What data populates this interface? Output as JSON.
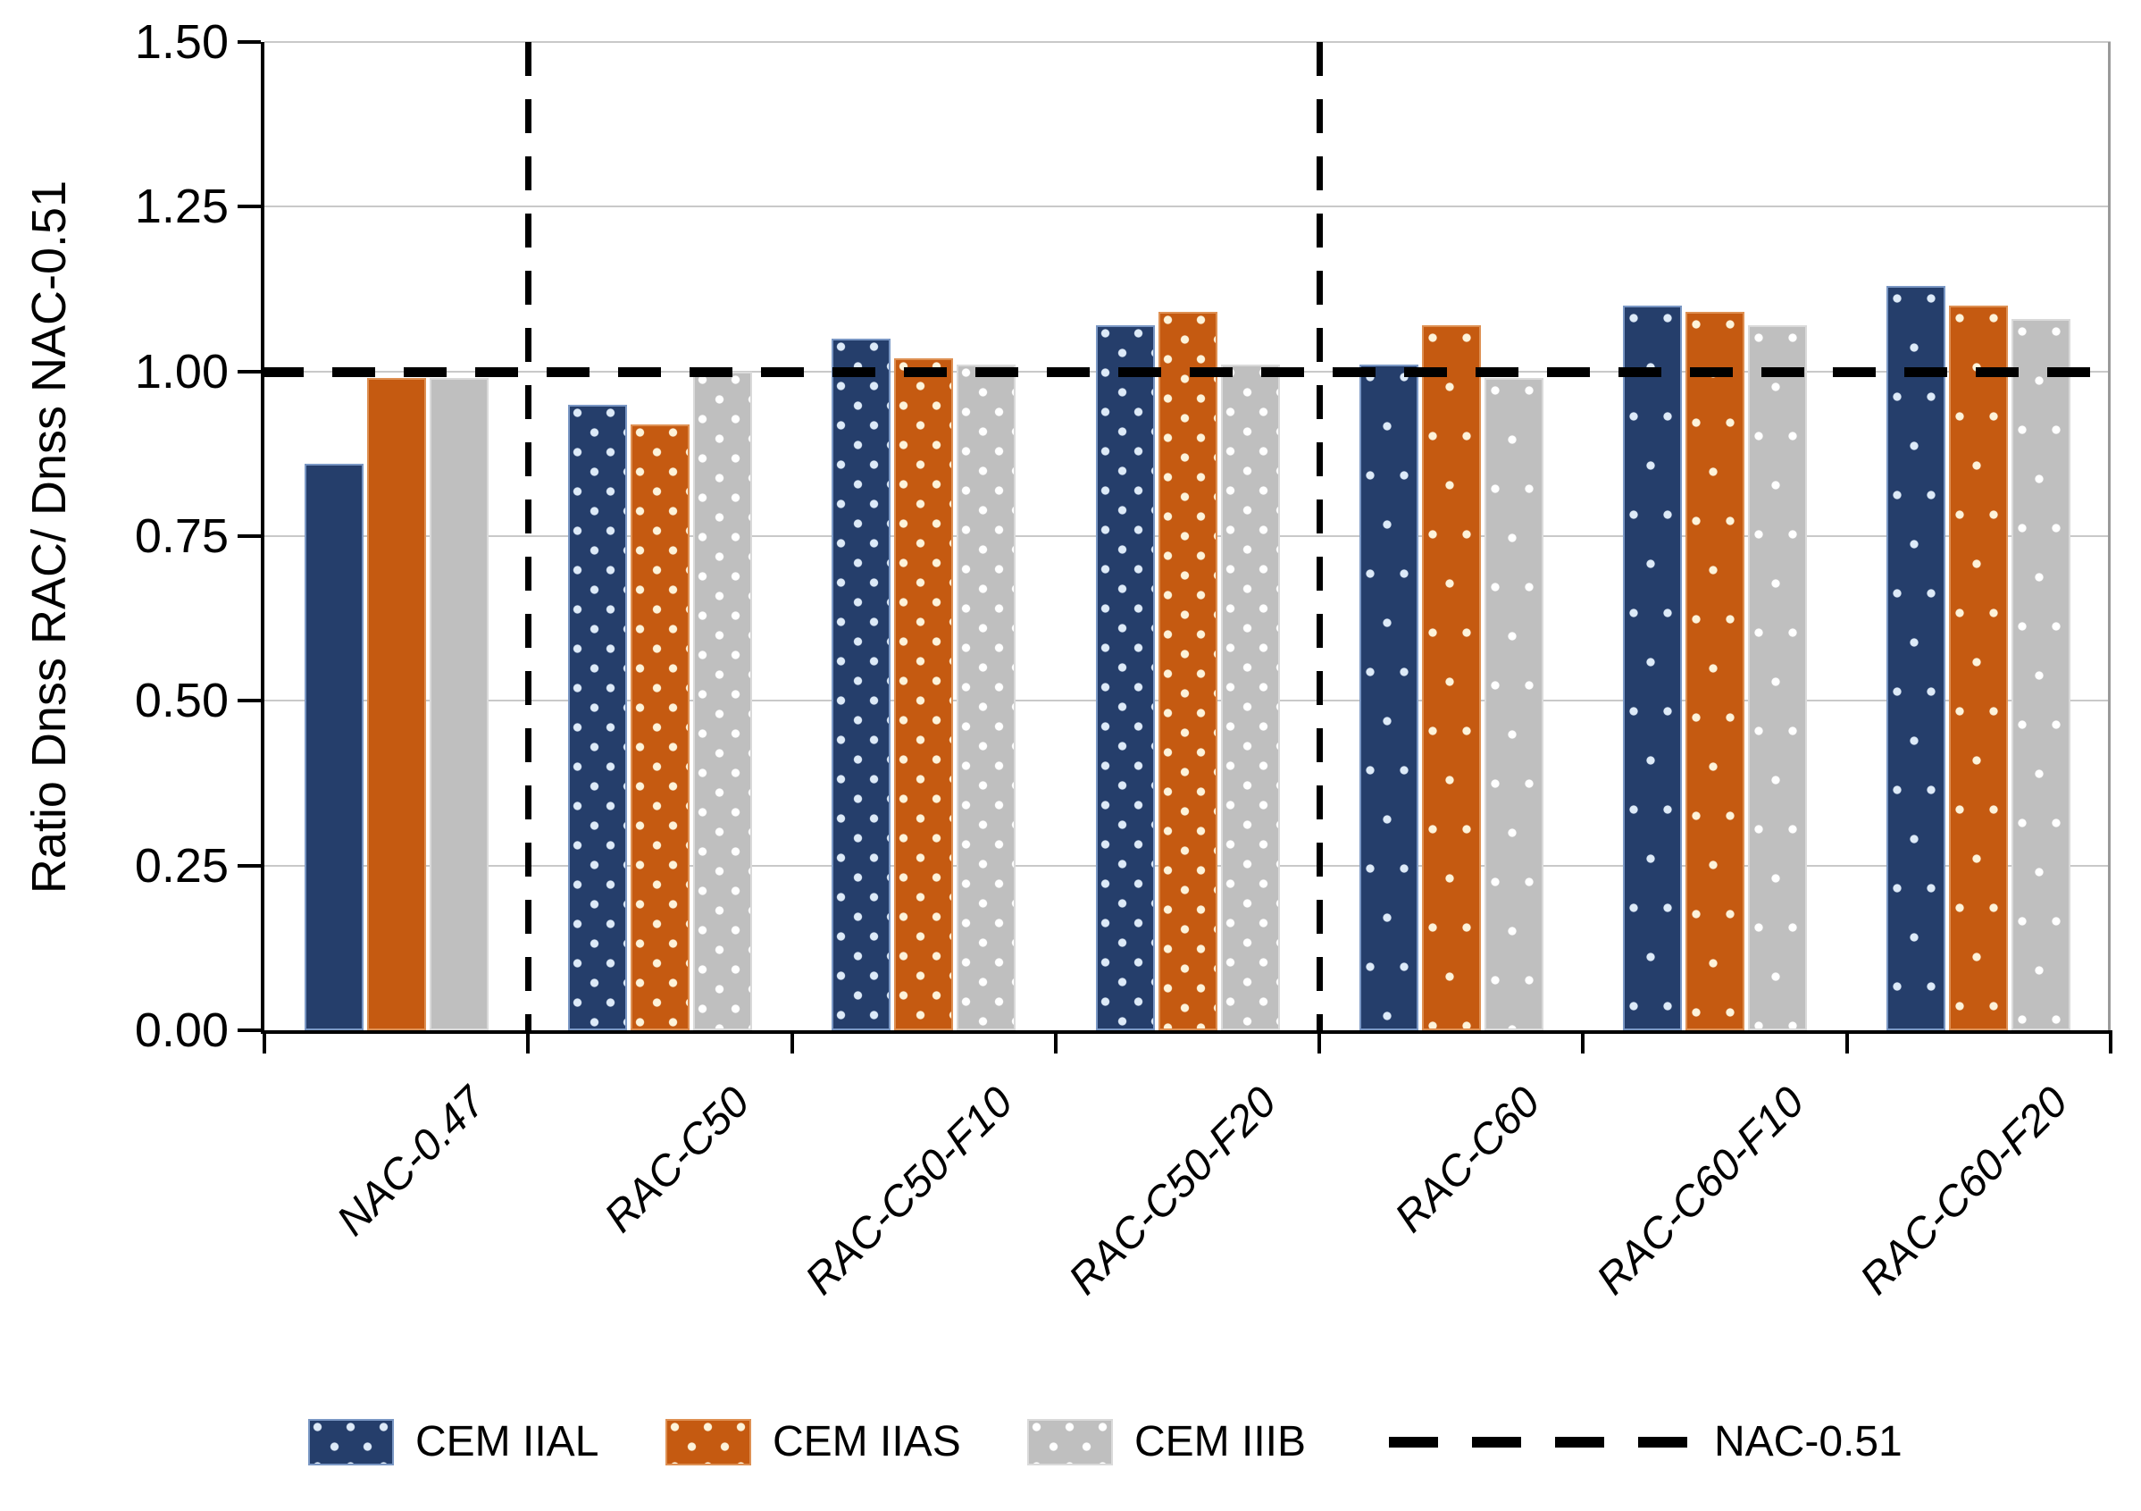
{
  "y_axis": {
    "title": "Ratio Dnss RAC/ Dnss NAC-0.51",
    "tick_labels": [
      "0.00",
      "0.25",
      "0.50",
      "0.75",
      "1.00",
      "1.25",
      "1.50"
    ]
  },
  "x_axis": {
    "labels": [
      "NAC-0.47",
      "RAC-C50",
      "RAC-C50-F10",
      "RAC-C50-F20",
      "RAC-C60",
      "RAC-C60-F10",
      "RAC-C60-F20"
    ]
  },
  "legend": [
    {
      "label": "CEM IIAL",
      "swatch": "dotted-blue"
    },
    {
      "label": "CEM IIAS",
      "swatch": "dotted-orange"
    },
    {
      "label": "CEM IIIB",
      "swatch": "dotted-gray"
    },
    {
      "label": "NAC-0.51",
      "swatch": "dashed-line"
    }
  ],
  "colors": {
    "cem_iial": "#253e6b",
    "cem_iias": "#c55a11",
    "cem_iiib": "#bfbfbf",
    "reference_line": "#000000",
    "gridline": "#c9c9c9"
  },
  "chart_data": {
    "type": "bar",
    "title": "",
    "xlabel": "",
    "ylabel": "Ratio Dnss RAC/ Dnss NAC-0.51",
    "ylim": [
      0,
      1.5
    ],
    "ytick_step": 0.25,
    "grid": true,
    "legend_position": "bottom",
    "categories": [
      "NAC-0.47",
      "RAC-C50",
      "RAC-C50-F10",
      "RAC-C50-F20",
      "RAC-C60",
      "RAC-C60-F10",
      "RAC-C60-F20"
    ],
    "series": [
      {
        "name": "CEM IIAL",
        "color": "#253e6b",
        "values": [
          0.86,
          0.95,
          1.05,
          1.07,
          1.01,
          1.1,
          1.13
        ]
      },
      {
        "name": "CEM IIAS",
        "color": "#c55a11",
        "values": [
          0.99,
          0.92,
          1.02,
          1.09,
          1.07,
          1.09,
          1.1
        ]
      },
      {
        "name": "CEM IIIB",
        "color": "#bfbfbf",
        "values": [
          0.99,
          1.0,
          1.01,
          1.01,
          0.99,
          1.07,
          1.08
        ]
      }
    ],
    "group_patterns": [
      "solid",
      "dots-dense",
      "dots-dense",
      "dots-dense",
      "dots-sparse",
      "dots-sparse",
      "dots-sparse"
    ],
    "reference_line": {
      "label": "NAC-0.51",
      "value": 1.0,
      "style": "dashed"
    },
    "separators_at_boundary_index": [
      1,
      4
    ]
  }
}
